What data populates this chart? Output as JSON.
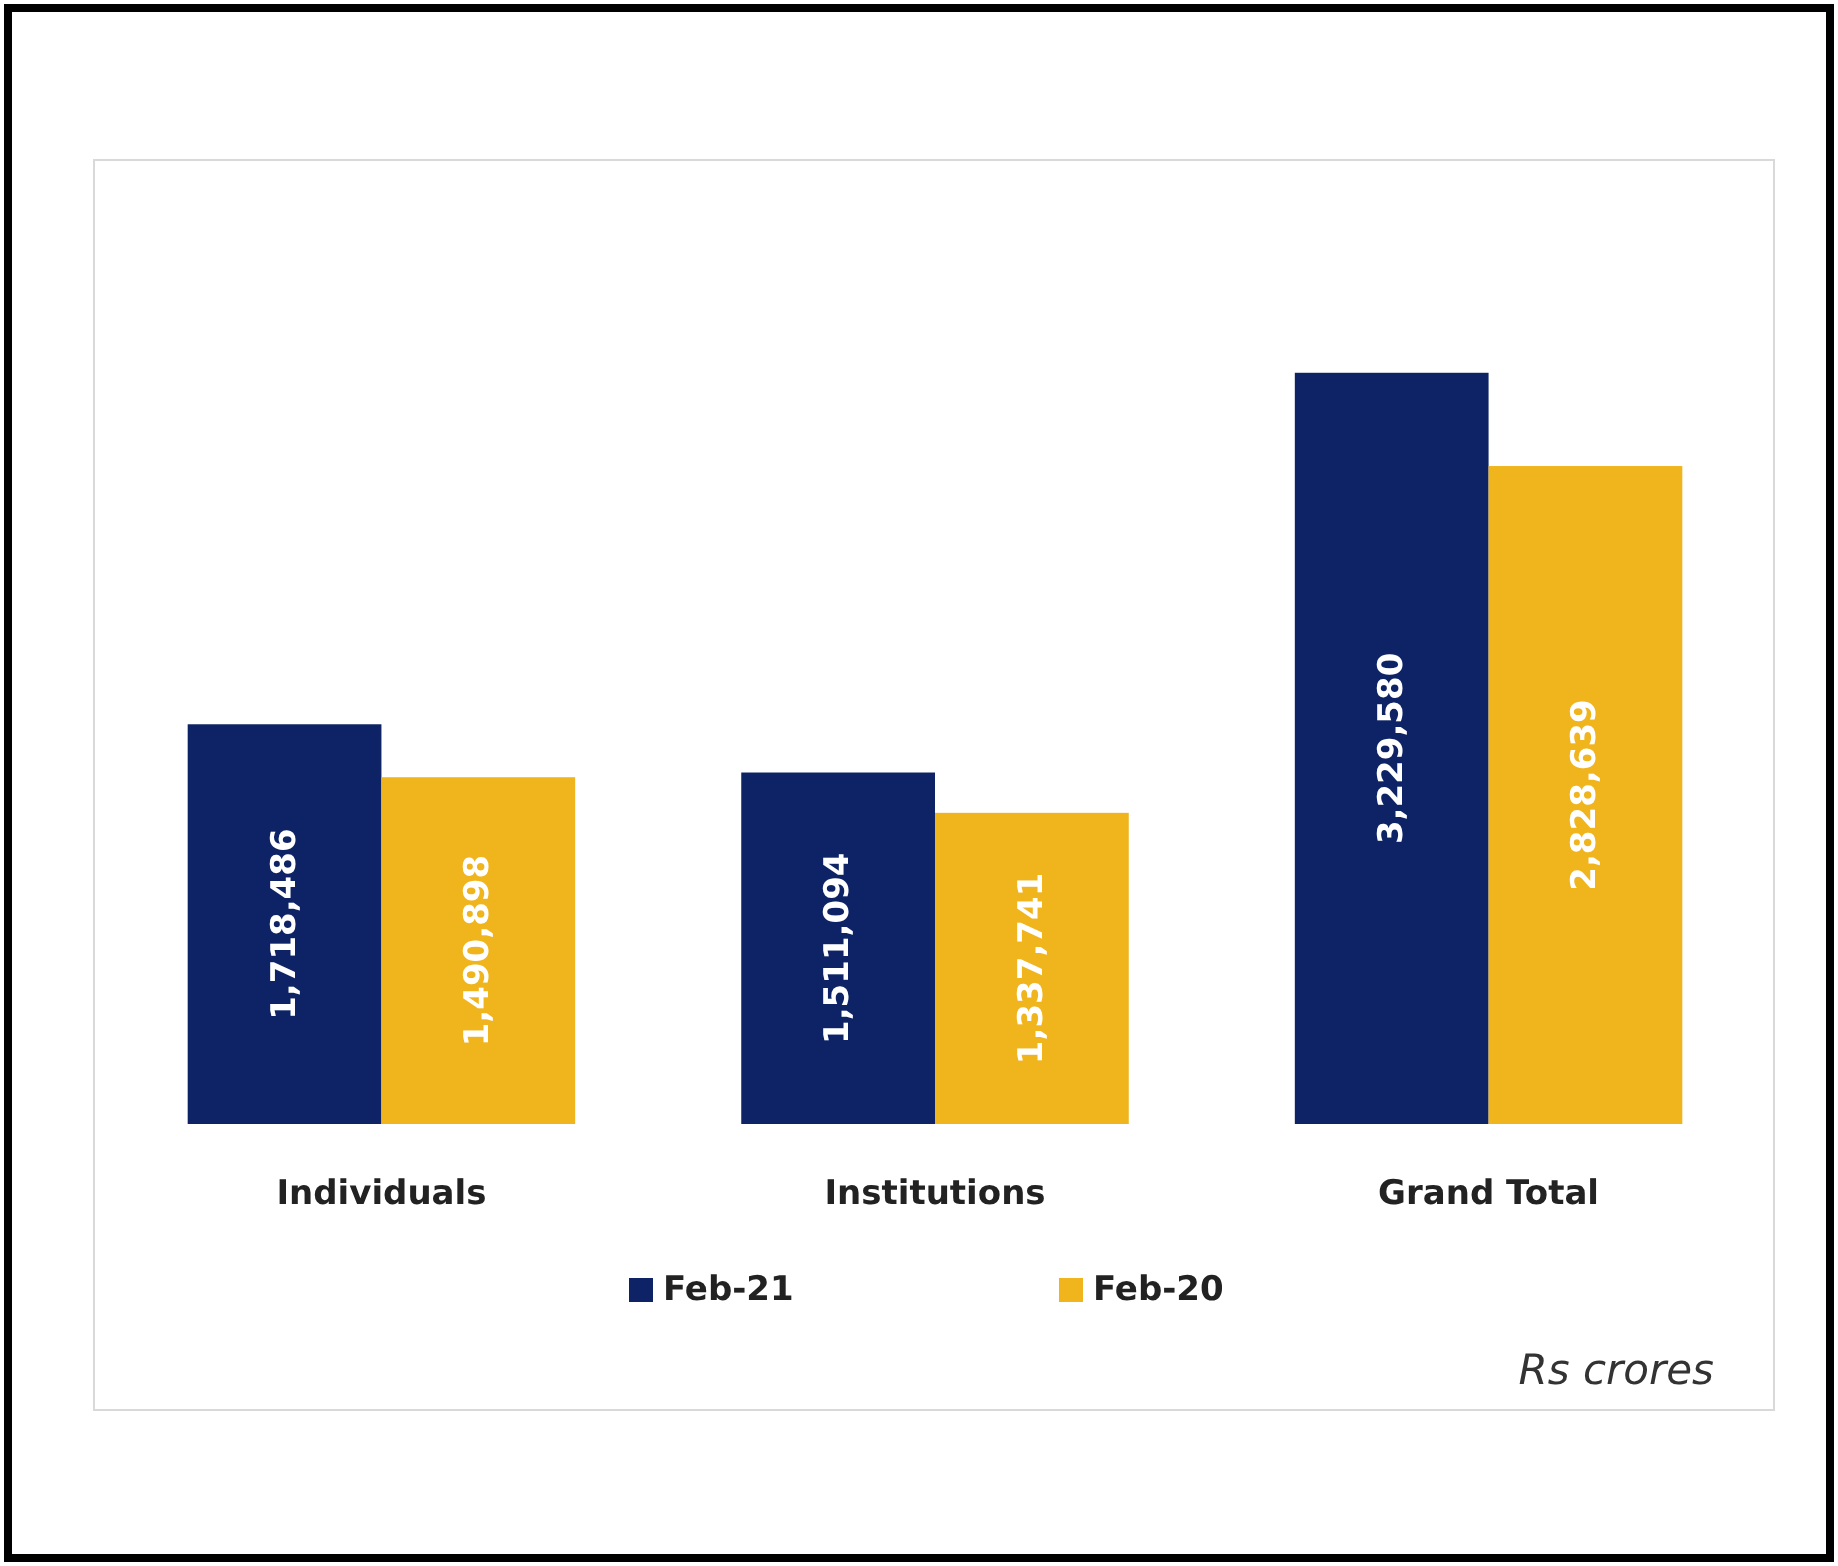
{
  "chart_data": {
    "type": "bar",
    "categories": [
      "Individuals",
      "Institutions",
      "Grand Total"
    ],
    "series": [
      {
        "name": "Feb-21",
        "color": "#0d2366",
        "values": [
          1718486,
          1511094,
          3229580
        ],
        "value_labels": [
          "1,718,486",
          "1,511,094",
          "3,229,580"
        ]
      },
      {
        "name": "Feb-20",
        "color": "#f0b41c",
        "values": [
          1490898,
          1337741,
          2828639
        ],
        "value_labels": [
          "1,490,898",
          "1,337,741",
          "2,828,639"
        ]
      }
    ],
    "legend": "bottom",
    "annotations": [
      "Rs crores"
    ]
  }
}
